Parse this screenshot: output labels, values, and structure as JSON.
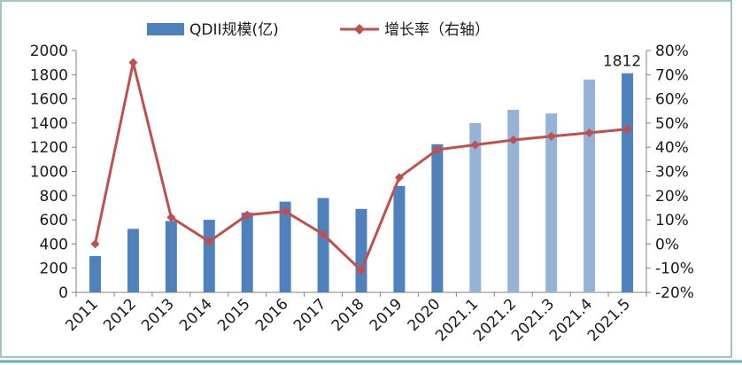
{
  "chart_data": {
    "type": "bar",
    "categories": [
      "2011",
      "2012",
      "2013",
      "2014",
      "2015",
      "2016",
      "2017",
      "2018",
      "2019",
      "2020",
      "2021.1",
      "2021.2",
      "2021.3",
      "2021.4",
      "2021.5"
    ],
    "series": [
      {
        "name": "QDII规模(亿)",
        "type": "bar",
        "axis": "left",
        "values": [
          300,
          525,
          590,
          600,
          660,
          750,
          780,
          690,
          880,
          1225,
          1400,
          1510,
          1480,
          1760,
          1812
        ],
        "colors": [
          "#4f81bd",
          "#4f81bd",
          "#4f81bd",
          "#4f81bd",
          "#4f81bd",
          "#4f81bd",
          "#4f81bd",
          "#4f81bd",
          "#4f81bd",
          "#4f81bd",
          "#95b3d7",
          "#95b3d7",
          "#95b3d7",
          "#95b3d7",
          "#4f81bd"
        ]
      },
      {
        "name": "增长率（右轴）",
        "type": "line",
        "axis": "right",
        "values": [
          0,
          75,
          11,
          1,
          12,
          13.5,
          4,
          -11,
          27.5,
          39,
          41,
          43,
          44.5,
          46,
          47.5
        ],
        "color": "#c0504d"
      }
    ],
    "left_axis": {
      "min": 0,
      "max": 2000,
      "step": 200
    },
    "right_axis": {
      "min": -20,
      "max": 80,
      "step": 10,
      "format": "percent"
    },
    "data_labels": [
      {
        "category": "2021.5",
        "text": "1812"
      }
    ],
    "legend_position": "top",
    "grid": false
  }
}
